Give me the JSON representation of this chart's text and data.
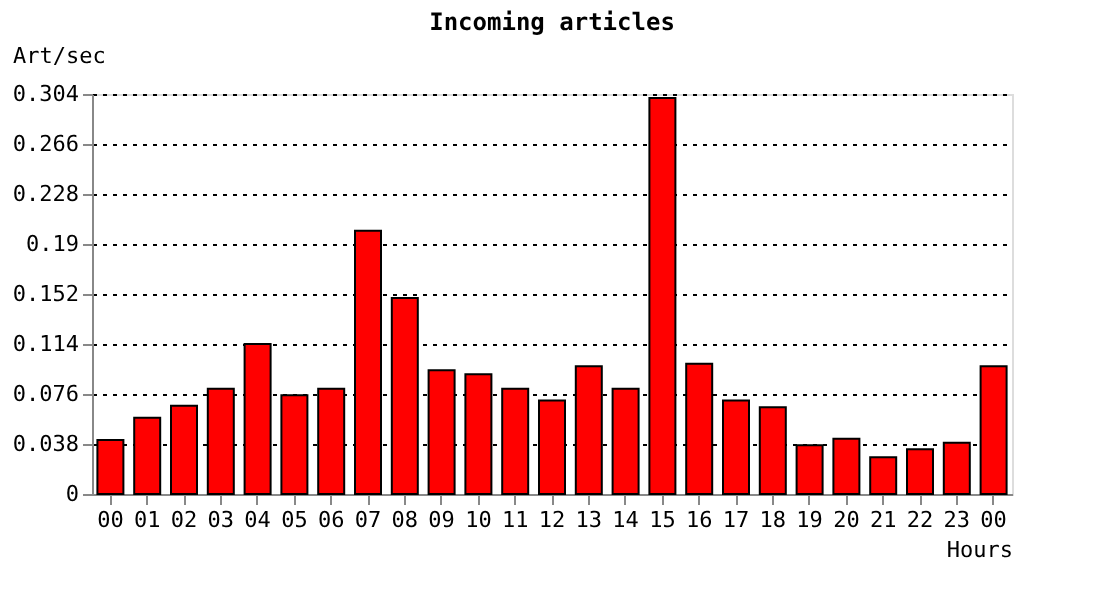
{
  "chart_data": {
    "type": "bar",
    "title": "Incoming articles",
    "ylabel": "Art/sec",
    "xlabel": "Hours",
    "categories": [
      "00",
      "01",
      "02",
      "03",
      "04",
      "05",
      "06",
      "07",
      "08",
      "09",
      "10",
      "11",
      "12",
      "13",
      "14",
      "15",
      "16",
      "17",
      "18",
      "19",
      "20",
      "21",
      "22",
      "23",
      "00"
    ],
    "values": [
      0.041,
      0.058,
      0.067,
      0.08,
      0.114,
      0.075,
      0.08,
      0.2,
      0.149,
      0.094,
      0.091,
      0.08,
      0.071,
      0.097,
      0.08,
      0.301,
      0.099,
      0.071,
      0.066,
      0.037,
      0.042,
      0.028,
      0.034,
      0.039,
      0.097
    ],
    "color": "#ff0000",
    "ylim": [
      0,
      0.304
    ],
    "yticks": [
      0,
      0.038,
      0.076,
      0.114,
      0.152,
      0.19,
      0.228,
      0.266,
      0.304
    ],
    "grid": "y",
    "line_style": "dotted"
  }
}
